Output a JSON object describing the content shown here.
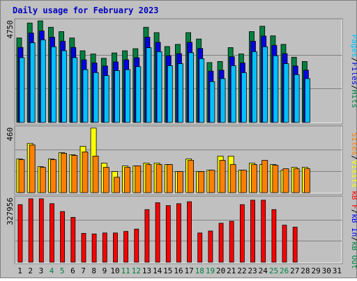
{
  "title": "Daily usage for February 2023",
  "colors": {
    "background": "#c0c0c0",
    "title": "#0000c0",
    "hits": "#008040",
    "files": "#0000e0",
    "pages": "#00c0ff",
    "visits": "#ffff00",
    "sites": "#ff8000",
    "kb_in": "#0000ff",
    "kb_out": "#008040",
    "kb_f": "#ff0000"
  },
  "panel_labels": {
    "top": [
      {
        "text": "Pages",
        "color_key": "pages"
      },
      {
        "text": "/",
        "color_key": "slash"
      },
      {
        "text": "Files",
        "color_key": "files"
      },
      {
        "text": "/",
        "color_key": "slash"
      },
      {
        "text": "Hits",
        "color_key": "hits"
      }
    ],
    "middle": [
      {
        "text": "Sites",
        "color_key": "sites"
      },
      {
        "text": "/",
        "color_key": "slash"
      },
      {
        "text": "Visits",
        "color_key": "visits"
      }
    ],
    "bottom": [
      {
        "text": "kB F",
        "color_key": "kb_f"
      },
      {
        "text": "/",
        "color_key": "slash"
      },
      {
        "text": "kB In",
        "color_key": "kb_in"
      },
      {
        "text": "/",
        "color_key": "slash"
      },
      {
        "text": "kB Out",
        "color_key": "kb_out"
      }
    ]
  },
  "chart_data": {
    "type": "bar",
    "title": "Daily usage for February 2023",
    "days": [
      "1",
      "2",
      "3",
      "4",
      "5",
      "6",
      "7",
      "8",
      "9",
      "10",
      "11",
      "12",
      "13",
      "14",
      "15",
      "16",
      "17",
      "18",
      "19",
      "20",
      "21",
      "22",
      "23",
      "24",
      "25",
      "26",
      "27",
      "28",
      "29",
      "30",
      "31"
    ],
    "weekend_days": [
      4,
      5,
      11,
      12,
      18,
      19,
      25,
      26
    ],
    "panels": [
      {
        "id": "top",
        "max_label": "4750",
        "max": 4750,
        "series": [
          {
            "name": "Hits",
            "values": [
              3950,
              4650,
              4750,
              4450,
              4250,
              3950,
              3350,
              3200,
              3000,
              3250,
              3350,
              3450,
              4450,
              4200,
              3550,
              3650,
              4200,
              3900,
              2800,
              2850,
              3500,
              3200,
              4250,
              4500,
              4050,
              3650,
              3050,
              2850,
              null,
              null,
              null
            ]
          },
          {
            "name": "Files",
            "values": [
              3800,
              4500,
              4600,
              4300,
              4100,
              3800,
              3200,
              3050,
              2900,
              3100,
              3200,
              3300,
              4300,
              4050,
              3400,
              3500,
              4050,
              3750,
              2650,
              2700,
              3350,
              3050,
              4100,
              4350,
              3900,
              3500,
              2900,
              2700,
              null,
              null,
              null
            ]
          },
          {
            "name": "Pages",
            "values": [
              3600,
              4350,
              4500,
              4150,
              3950,
              3600,
              3000,
              2850,
              2700,
              2950,
              3000,
              3150,
              4100,
              3900,
              3200,
              3300,
              3850,
              3550,
              2400,
              2550,
              3200,
              2850,
              3900,
              4150,
              3700,
              3300,
              2750,
              2550,
              null,
              null,
              null
            ]
          }
        ]
      },
      {
        "id": "middle",
        "max_label": "460",
        "max": 460,
        "series": [
          {
            "name": "Visits",
            "values": [
              240,
              350,
              185,
              240,
              285,
              270,
              330,
              460,
              210,
              150,
              190,
              190,
              210,
              210,
              200,
              150,
              240,
              150,
              160,
              260,
              260,
              160,
              210,
              200,
              200,
              160,
              180,
              180,
              null,
              null,
              null
            ]
          },
          {
            "name": "Sites",
            "values": [
              235,
              340,
              180,
              235,
              280,
              265,
              290,
              260,
              180,
              110,
              180,
              190,
              200,
              200,
              200,
              150,
              230,
              150,
              160,
              230,
              200,
              160,
              200,
              230,
              195,
              170,
              170,
              170,
              null,
              null,
              null
            ]
          }
        ]
      },
      {
        "id": "bottom",
        "max_label": "327956",
        "max": 327956,
        "series": [
          {
            "name": "kB F",
            "values": [
              295000,
              325000,
              325000,
              300000,
              260000,
              230000,
              148000,
              145000,
              150000,
              150000,
              158000,
              170000,
              270000,
              305000,
              290000,
              300000,
              310000,
              150000,
              160000,
              200000,
              210000,
              295000,
              318000,
              318000,
              270000,
              190000,
              180000,
              null,
              null,
              null,
              null
            ]
          }
        ]
      }
    ]
  }
}
